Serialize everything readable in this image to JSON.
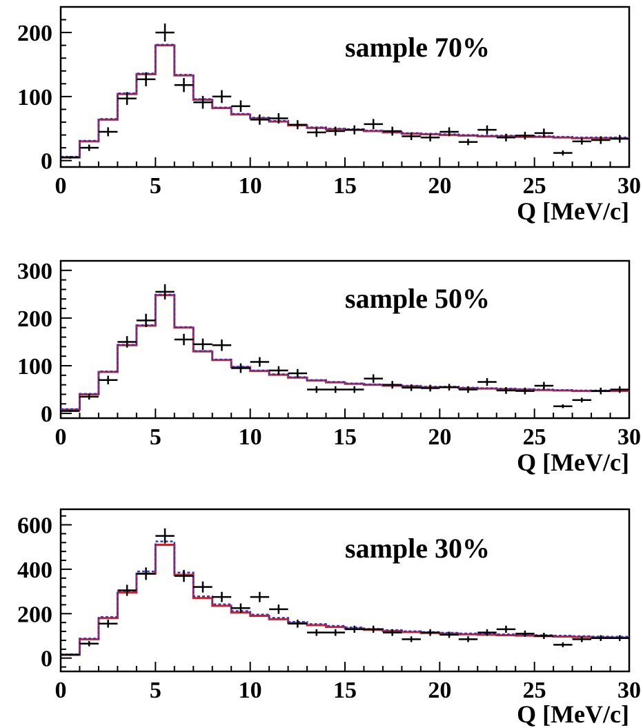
{
  "chart_data": [
    {
      "type": "histogram",
      "title": "sample 70%",
      "xlabel": "Q [MeV/c]",
      "ylabel": "",
      "xlim": [
        0,
        30
      ],
      "ylim": [
        -10,
        240
      ],
      "xticks": [
        0,
        5,
        10,
        15,
        20,
        25,
        30
      ],
      "xtick_labels": [
        "0",
        "5",
        "10",
        "15",
        "20",
        "25",
        "30"
      ],
      "yticks": [
        0,
        100,
        200
      ],
      "ytick_labels": [
        "0",
        "100",
        "200"
      ],
      "bin_edges": [
        0,
        1,
        2,
        3,
        4,
        5,
        6,
        7,
        8,
        9,
        10,
        11,
        12,
        13,
        14,
        15,
        16,
        17,
        18,
        19,
        20,
        21,
        22,
        23,
        24,
        25,
        26,
        27,
        28,
        29,
        30
      ],
      "series": [
        {
          "kind": "histogram-fit",
          "color": "#e31a1c",
          "values": [
            5,
            30,
            64,
            104,
            135,
            180,
            133,
            95,
            82,
            72,
            66,
            61,
            55,
            51,
            49,
            48,
            46,
            44,
            42,
            41,
            40,
            39,
            38,
            38,
            37,
            37,
            36,
            35,
            35,
            35
          ]
        },
        {
          "kind": "histogram-fit-dashed",
          "color": "#1f3fd1",
          "values": [
            6,
            31,
            65,
            105,
            136,
            181,
            134,
            96,
            83,
            73,
            67,
            62,
            56,
            52,
            50,
            49,
            47,
            45,
            43,
            42,
            41,
            40,
            39,
            39,
            38,
            38,
            37,
            36,
            36,
            36
          ]
        },
        {
          "kind": "data-points",
          "color": "#000000",
          "x": [
            0.5,
            1.5,
            2.5,
            3.5,
            4.5,
            5.5,
            6.5,
            7.5,
            8.5,
            9.5,
            10.5,
            11.5,
            12.5,
            13.5,
            14.5,
            15.5,
            16.5,
            17.5,
            18.5,
            19.5,
            20.5,
            21.5,
            22.5,
            23.5,
            24.5,
            25.5,
            26.5,
            27.5,
            28.5,
            29.5
          ],
          "y": [
            5,
            20,
            45,
            97,
            127,
            200,
            118,
            91,
            100,
            85,
            64,
            66,
            56,
            44,
            46,
            48,
            57,
            46,
            38,
            36,
            45,
            29,
            48,
            36,
            39,
            43,
            12,
            30,
            32,
            34
          ],
          "yerr": [
            2,
            5,
            7,
            10,
            11,
            14,
            11,
            10,
            10,
            9,
            8,
            8,
            7,
            7,
            7,
            7,
            8,
            7,
            6,
            6,
            7,
            5,
            7,
            6,
            6,
            7,
            4,
            5,
            6,
            6
          ]
        }
      ]
    },
    {
      "type": "histogram",
      "title": "sample 50%",
      "xlabel": "Q [MeV/c]",
      "ylabel": "",
      "xlim": [
        0,
        30
      ],
      "ylim": [
        -10,
        320
      ],
      "xticks": [
        0,
        5,
        10,
        15,
        20,
        25,
        30
      ],
      "xtick_labels": [
        "0",
        "5",
        "10",
        "15",
        "20",
        "25",
        "30"
      ],
      "yticks": [
        0,
        100,
        200,
        300
      ],
      "ytick_labels": [
        "0",
        "100",
        "200",
        "300"
      ],
      "bin_edges": [
        0,
        1,
        2,
        3,
        4,
        5,
        6,
        7,
        8,
        9,
        10,
        11,
        12,
        13,
        14,
        15,
        16,
        17,
        18,
        19,
        20,
        21,
        22,
        23,
        24,
        25,
        26,
        27,
        28,
        29,
        30
      ],
      "series": [
        {
          "kind": "histogram-fit",
          "color": "#e31a1c",
          "values": [
            8,
            40,
            87,
            143,
            184,
            248,
            180,
            130,
            112,
            97,
            89,
            81,
            75,
            69,
            65,
            62,
            60,
            58,
            57,
            55,
            55,
            53,
            52,
            51,
            50,
            49,
            48,
            47,
            47,
            47
          ]
        },
        {
          "kind": "histogram-fit-dashed",
          "color": "#1f3fd1",
          "values": [
            9,
            41,
            88,
            144,
            185,
            249,
            181,
            131,
            113,
            98,
            90,
            82,
            76,
            70,
            66,
            63,
            61,
            59,
            58,
            56,
            56,
            54,
            53,
            52,
            51,
            50,
            49,
            48,
            48,
            48
          ]
        },
        {
          "kind": "data-points",
          "color": "#000000",
          "x": [
            0.5,
            1.5,
            2.5,
            3.5,
            4.5,
            5.5,
            6.5,
            7.5,
            8.5,
            9.5,
            10.5,
            11.5,
            12.5,
            13.5,
            14.5,
            15.5,
            16.5,
            17.5,
            18.5,
            19.5,
            20.5,
            21.5,
            22.5,
            23.5,
            24.5,
            25.5,
            26.5,
            27.5,
            28.5,
            29.5
          ],
          "y": [
            5,
            35,
            70,
            150,
            195,
            255,
            155,
            145,
            143,
            95,
            108,
            90,
            84,
            50,
            50,
            50,
            73,
            60,
            54,
            53,
            55,
            50,
            66,
            48,
            47,
            58,
            15,
            28,
            47,
            50
          ],
          "yerr": [
            2,
            6,
            9,
            12,
            14,
            16,
            12,
            12,
            12,
            10,
            10,
            9,
            9,
            7,
            7,
            7,
            9,
            8,
            7,
            7,
            7,
            7,
            8,
            7,
            7,
            8,
            4,
            5,
            7,
            7
          ]
        }
      ]
    },
    {
      "type": "histogram",
      "title": "sample 30%",
      "xlabel": "Q [MeV/c]",
      "ylabel": "",
      "xlim": [
        0,
        30
      ],
      "ylim": [
        -60,
        670
      ],
      "xticks": [
        0,
        5,
        10,
        15,
        20,
        25,
        30
      ],
      "xtick_labels": [
        "0",
        "5",
        "10",
        "15",
        "20",
        "25",
        "30"
      ],
      "yticks": [
        0,
        200,
        400,
        600
      ],
      "ytick_labels": [
        "0",
        "200",
        "400",
        "600"
      ],
      "bin_edges": [
        0,
        1,
        2,
        3,
        4,
        5,
        6,
        7,
        8,
        9,
        10,
        11,
        12,
        13,
        14,
        15,
        16,
        17,
        18,
        19,
        20,
        21,
        22,
        23,
        24,
        25,
        26,
        27,
        28,
        29,
        30
      ],
      "series": [
        {
          "kind": "histogram-fit",
          "color": "#e31a1c",
          "values": [
            15,
            85,
            180,
            295,
            380,
            510,
            375,
            270,
            235,
            205,
            190,
            175,
            158,
            148,
            140,
            133,
            127,
            122,
            117,
            113,
            110,
            107,
            105,
            103,
            101,
            99,
            97,
            95,
            93,
            92
          ]
        },
        {
          "kind": "histogram-fit-dashed",
          "color": "#1f3fd1",
          "values": [
            17,
            88,
            185,
            302,
            390,
            525,
            385,
            278,
            242,
            212,
            196,
            181,
            163,
            153,
            145,
            138,
            131,
            126,
            121,
            117,
            114,
            111,
            109,
            107,
            105,
            103,
            101,
            99,
            97,
            96
          ]
        },
        {
          "kind": "data-points",
          "color": "#000000",
          "x": [
            0.5,
            1.5,
            2.5,
            3.5,
            4.5,
            5.5,
            6.5,
            7.5,
            8.5,
            9.5,
            10.5,
            11.5,
            12.5,
            13.5,
            14.5,
            15.5,
            16.5,
            17.5,
            18.5,
            19.5,
            20.5,
            21.5,
            22.5,
            23.5,
            24.5,
            25.5,
            26.5,
            27.5,
            28.5,
            29.5
          ],
          "y": [
            15,
            65,
            155,
            305,
            380,
            550,
            370,
            320,
            275,
            225,
            275,
            220,
            155,
            115,
            115,
            130,
            130,
            115,
            85,
            115,
            105,
            85,
            115,
            130,
            110,
            100,
            60,
            85,
            90,
            90
          ],
          "yerr": [
            5,
            12,
            18,
            25,
            28,
            34,
            27,
            25,
            23,
            21,
            23,
            21,
            18,
            15,
            15,
            16,
            16,
            15,
            13,
            15,
            14,
            13,
            15,
            16,
            14,
            14,
            11,
            13,
            13,
            13
          ]
        }
      ]
    }
  ]
}
